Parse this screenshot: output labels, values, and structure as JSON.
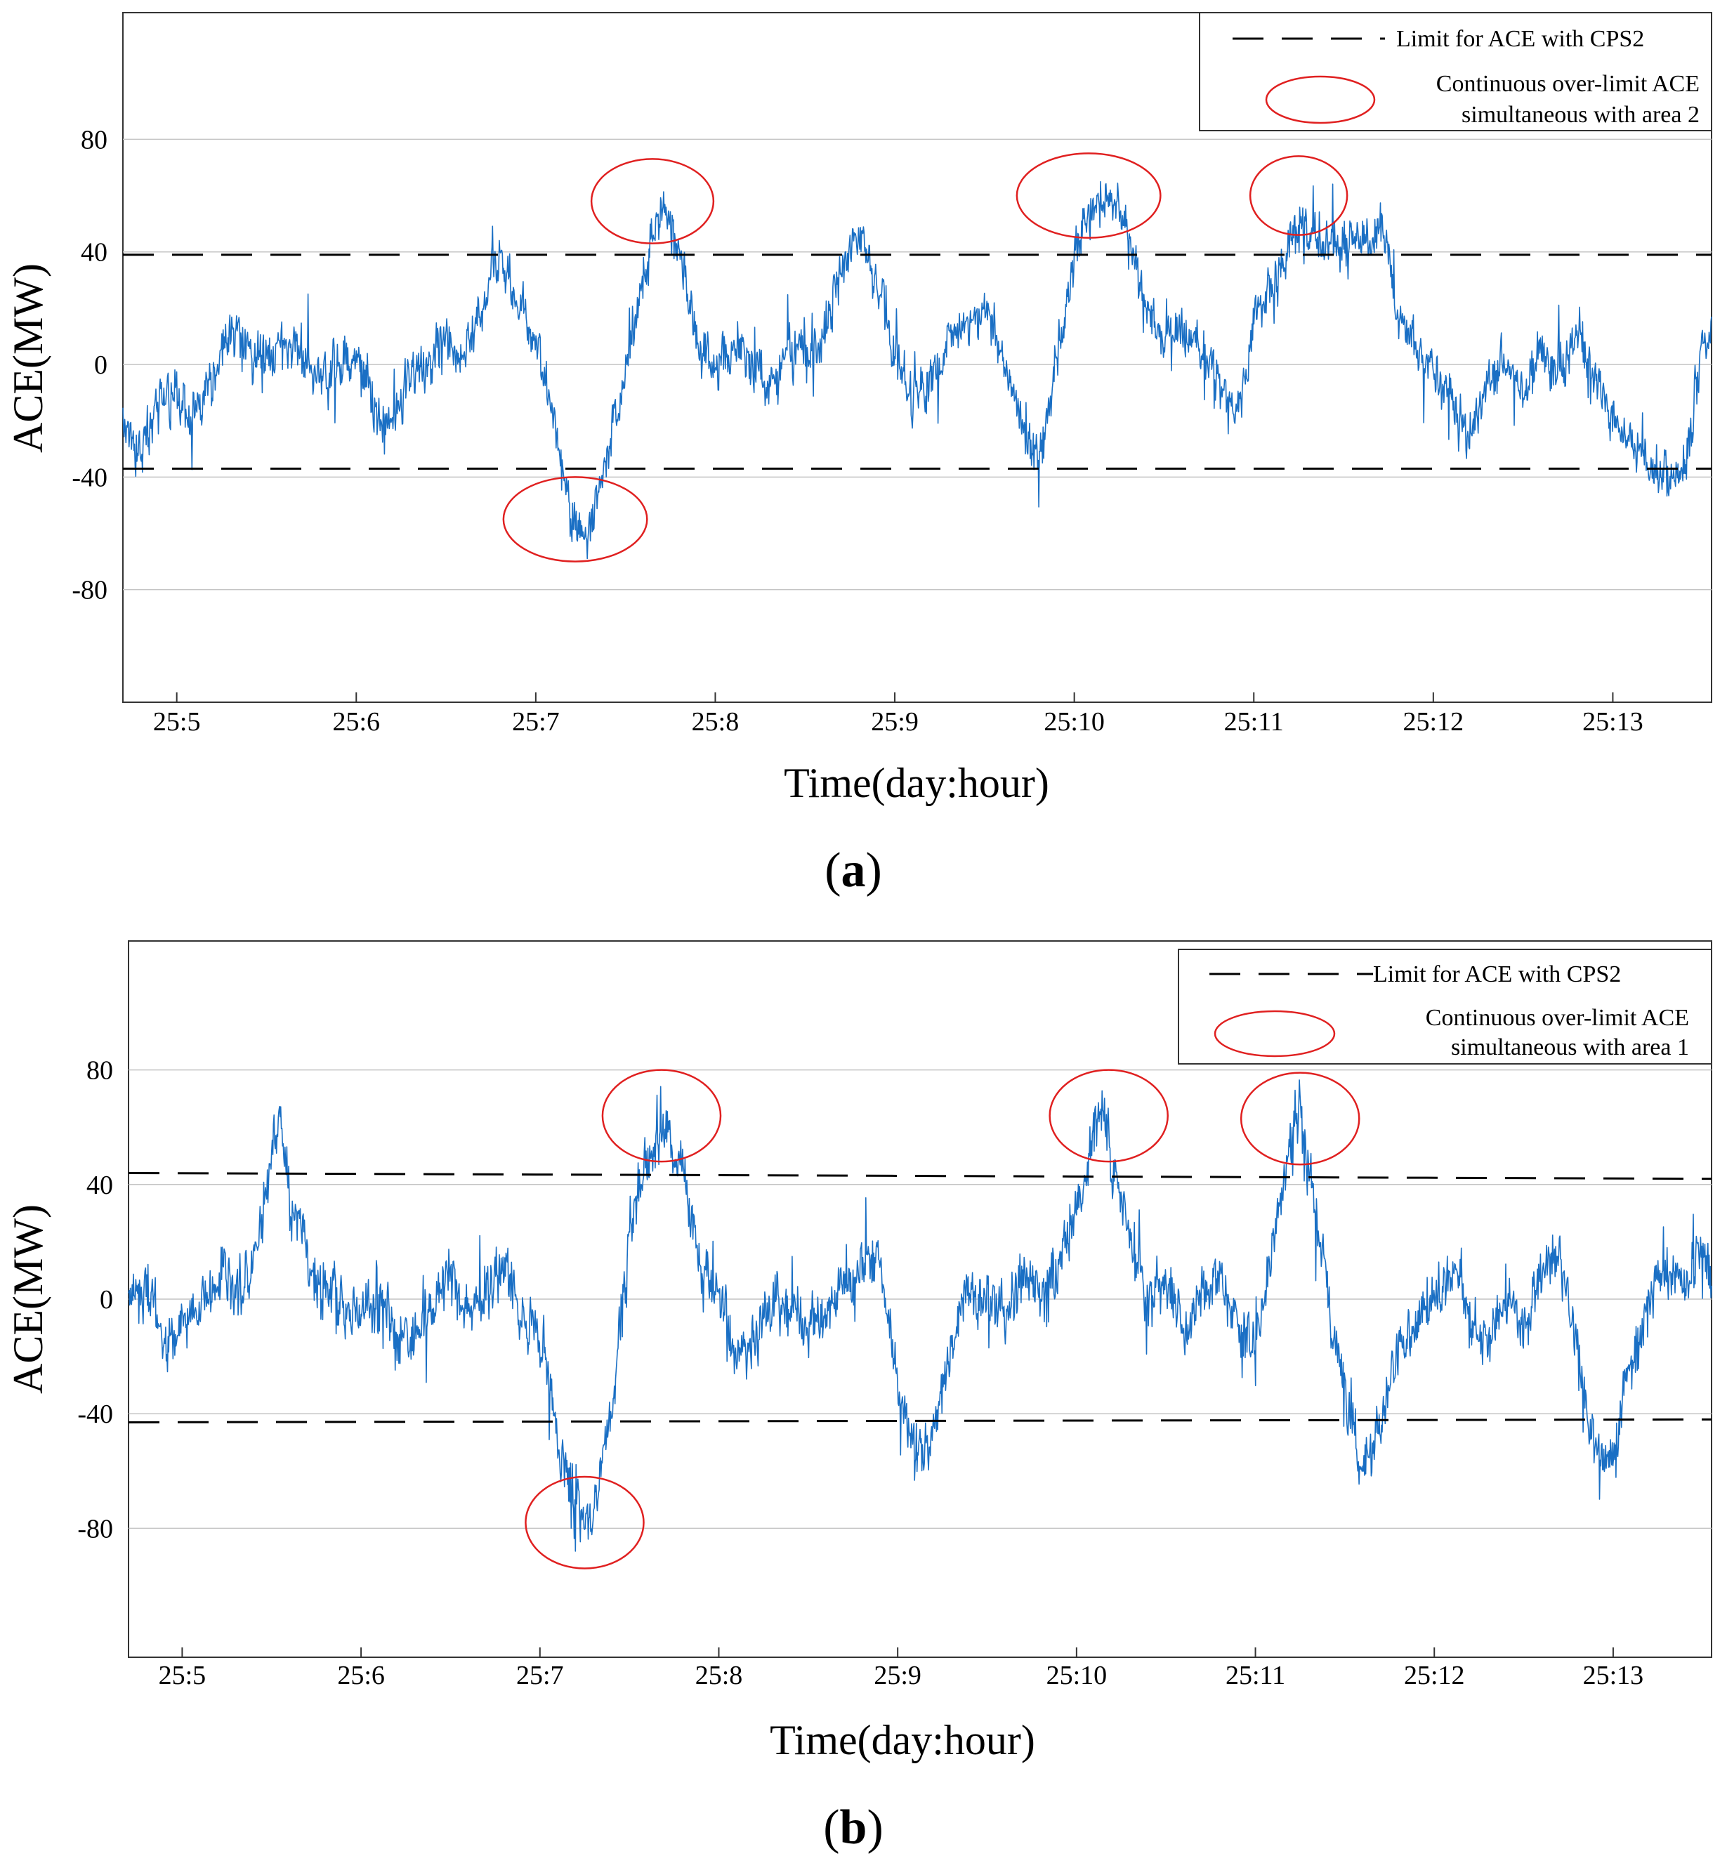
{
  "chart_data": [
    {
      "id": "a",
      "type": "line",
      "panel_label_letter": "a",
      "xlabel": "Time(day:hour)",
      "ylabel": "ACE(MW)",
      "x_unit": "hour",
      "xlim": [
        4.7,
        13.55
      ],
      "ylim": [
        -120,
        125
      ],
      "x_ticks": [
        5,
        6,
        7,
        8,
        9,
        10,
        11,
        12,
        13
      ],
      "x_tick_labels": [
        "25:5",
        "25:6",
        "25:7",
        "25:8",
        "25:9",
        "25:10",
        "25:11",
        "25:12",
        "25:13"
      ],
      "y_ticks": [
        -80,
        -40,
        0,
        40,
        80
      ],
      "y_tick_labels": [
        "-80",
        "-40",
        "0",
        "40",
        "80"
      ],
      "grid": "horizontal",
      "series_color": "#1a6fc4",
      "limit_color": "#000000",
      "ellipse_color": "#e02020",
      "series": [
        {
          "name": "ACE",
          "x": [
            4.7,
            4.8,
            4.9,
            5.0,
            5.1,
            5.2,
            5.3,
            5.4,
            5.5,
            5.6,
            5.7,
            5.8,
            5.9,
            6.0,
            6.1,
            6.2,
            6.3,
            6.4,
            6.5,
            6.6,
            6.7,
            6.8,
            6.9,
            7.0,
            7.1,
            7.2,
            7.3,
            7.4,
            7.5,
            7.6,
            7.7,
            7.8,
            7.9,
            8.0,
            8.1,
            8.2,
            8.3,
            8.4,
            8.5,
            8.6,
            8.7,
            8.8,
            8.9,
            9.0,
            9.1,
            9.2,
            9.3,
            9.4,
            9.5,
            9.6,
            9.7,
            9.8,
            9.9,
            10.0,
            10.1,
            10.2,
            10.3,
            10.4,
            10.5,
            10.6,
            10.7,
            10.8,
            10.9,
            11.0,
            11.1,
            11.2,
            11.3,
            11.4,
            11.5,
            11.6,
            11.7,
            11.8,
            11.9,
            12.0,
            12.1,
            12.2,
            12.3,
            12.4,
            12.5,
            12.6,
            12.7,
            12.8,
            12.9,
            13.0,
            13.1,
            13.2,
            13.3,
            13.4,
            13.5,
            13.55
          ],
          "values": [
            -20,
            -30,
            -15,
            -10,
            -20,
            -5,
            10,
            5,
            0,
            10,
            5,
            -5,
            0,
            5,
            -15,
            -20,
            -5,
            0,
            10,
            5,
            20,
            40,
            20,
            10,
            -20,
            -55,
            -60,
            -30,
            0,
            30,
            55,
            40,
            10,
            0,
            5,
            0,
            -10,
            5,
            0,
            10,
            35,
            45,
            30,
            5,
            -15,
            -5,
            10,
            15,
            20,
            5,
            -20,
            -35,
            0,
            40,
            55,
            60,
            50,
            20,
            10,
            15,
            5,
            -5,
            -20,
            10,
            30,
            45,
            50,
            45,
            40,
            45,
            50,
            20,
            5,
            -5,
            -15,
            -25,
            -5,
            0,
            -10,
            5,
            0,
            10,
            -5,
            -20,
            -25,
            -35,
            -40,
            -35,
            5,
            10
          ],
          "noise_amplitude": 9
        },
        {
          "name": "Upper limit (CPS2)",
          "x": [
            4.7,
            13.55
          ],
          "values": [
            39,
            39
          ],
          "style": "dashed"
        },
        {
          "name": "Lower limit (CPS2)",
          "x": [
            4.7,
            13.55
          ],
          "values": [
            -37,
            -37
          ],
          "style": "dashed"
        }
      ],
      "annotations": {
        "ellipses": [
          {
            "cx": 7.65,
            "cy": 58,
            "rx": 0.34,
            "ry": 15
          },
          {
            "cx": 7.22,
            "cy": -55,
            "rx": 0.4,
            "ry": 15
          },
          {
            "cx": 10.08,
            "cy": 60,
            "rx": 0.4,
            "ry": 15
          },
          {
            "cx": 11.25,
            "cy": 60,
            "rx": 0.27,
            "ry": 14
          }
        ]
      },
      "legend": {
        "position": "top-right",
        "limit_label": "Limit for ACE with CPS2",
        "ellipse_label_line1": "Continuous over-limit ACE",
        "ellipse_label_line2": "simultaneous with area 2"
      }
    },
    {
      "id": "b",
      "type": "line",
      "panel_label_letter": "b",
      "xlabel": "Time(day:hour)",
      "ylabel": "ACE(MW)",
      "x_unit": "hour",
      "xlim": [
        4.7,
        13.55
      ],
      "ylim": [
        -125,
        125
      ],
      "x_ticks": [
        5,
        6,
        7,
        8,
        9,
        10,
        11,
        12,
        13
      ],
      "x_tick_labels": [
        "25:5",
        "25:6",
        "25:7",
        "25:8",
        "25:9",
        "25:10",
        "25:11",
        "25:12",
        "25:13"
      ],
      "y_ticks": [
        -80,
        -40,
        0,
        40,
        80
      ],
      "y_tick_labels": [
        "-80",
        "-40",
        "0",
        "40",
        "80"
      ],
      "grid": "horizontal",
      "series_color": "#1a6fc4",
      "limit_color": "#000000",
      "ellipse_color": "#e02020",
      "series": [
        {
          "name": "ACE",
          "x": [
            4.7,
            4.8,
            4.9,
            5.0,
            5.1,
            5.2,
            5.3,
            5.4,
            5.5,
            5.55,
            5.6,
            5.7,
            5.8,
            5.9,
            6.0,
            6.1,
            6.2,
            6.3,
            6.4,
            6.5,
            6.6,
            6.7,
            6.8,
            6.9,
            7.0,
            7.1,
            7.2,
            7.3,
            7.4,
            7.5,
            7.6,
            7.7,
            7.8,
            7.9,
            8.0,
            8.1,
            8.2,
            8.3,
            8.4,
            8.5,
            8.6,
            8.7,
            8.8,
            8.9,
            9.0,
            9.1,
            9.2,
            9.3,
            9.4,
            9.5,
            9.6,
            9.7,
            9.8,
            9.9,
            10.0,
            10.1,
            10.15,
            10.2,
            10.3,
            10.4,
            10.5,
            10.6,
            10.7,
            10.8,
            10.9,
            11.0,
            11.1,
            11.2,
            11.25,
            11.3,
            11.4,
            11.5,
            11.6,
            11.7,
            11.8,
            11.9,
            12.0,
            12.1,
            12.2,
            12.3,
            12.4,
            12.5,
            12.6,
            12.7,
            12.8,
            12.9,
            13.0,
            13.1,
            13.2,
            13.3,
            13.4,
            13.5,
            13.55
          ],
          "values": [
            0,
            5,
            -15,
            -10,
            -5,
            10,
            5,
            10,
            50,
            60,
            40,
            15,
            5,
            0,
            -5,
            0,
            -10,
            -15,
            0,
            10,
            -5,
            0,
            15,
            -5,
            -10,
            -50,
            -75,
            -75,
            -40,
            20,
            50,
            60,
            45,
            10,
            0,
            -20,
            -15,
            0,
            -5,
            -10,
            -5,
            5,
            10,
            15,
            -35,
            -55,
            -45,
            -15,
            5,
            0,
            -5,
            10,
            0,
            15,
            30,
            60,
            70,
            45,
            20,
            0,
            10,
            -10,
            0,
            10,
            -10,
            -15,
            20,
            55,
            65,
            45,
            5,
            -35,
            -60,
            -45,
            -20,
            -5,
            0,
            10,
            -5,
            -15,
            0,
            -10,
            10,
            15,
            -20,
            -55,
            -55,
            -20,
            0,
            10,
            5,
            15,
            5
          ],
          "noise_amplitude": 10
        },
        {
          "name": "Upper limit (CPS2)",
          "x": [
            4.7,
            13.55
          ],
          "values": [
            44,
            42
          ],
          "style": "dashed"
        },
        {
          "name": "Lower limit (CPS2)",
          "x": [
            4.7,
            13.55
          ],
          "values": [
            -43,
            -42
          ],
          "style": "dashed"
        }
      ],
      "annotations": {
        "ellipses": [
          {
            "cx": 7.68,
            "cy": 64,
            "rx": 0.33,
            "ry": 16
          },
          {
            "cx": 7.25,
            "cy": -78,
            "rx": 0.33,
            "ry": 16
          },
          {
            "cx": 10.18,
            "cy": 64,
            "rx": 0.33,
            "ry": 16
          },
          {
            "cx": 11.25,
            "cy": 63,
            "rx": 0.33,
            "ry": 16
          }
        ]
      },
      "legend": {
        "position": "top-right",
        "limit_label": "Limit for ACE with CPS2",
        "ellipse_label_line1": "Continuous over-limit ACE",
        "ellipse_label_line2": "simultaneous with area 1"
      }
    }
  ]
}
